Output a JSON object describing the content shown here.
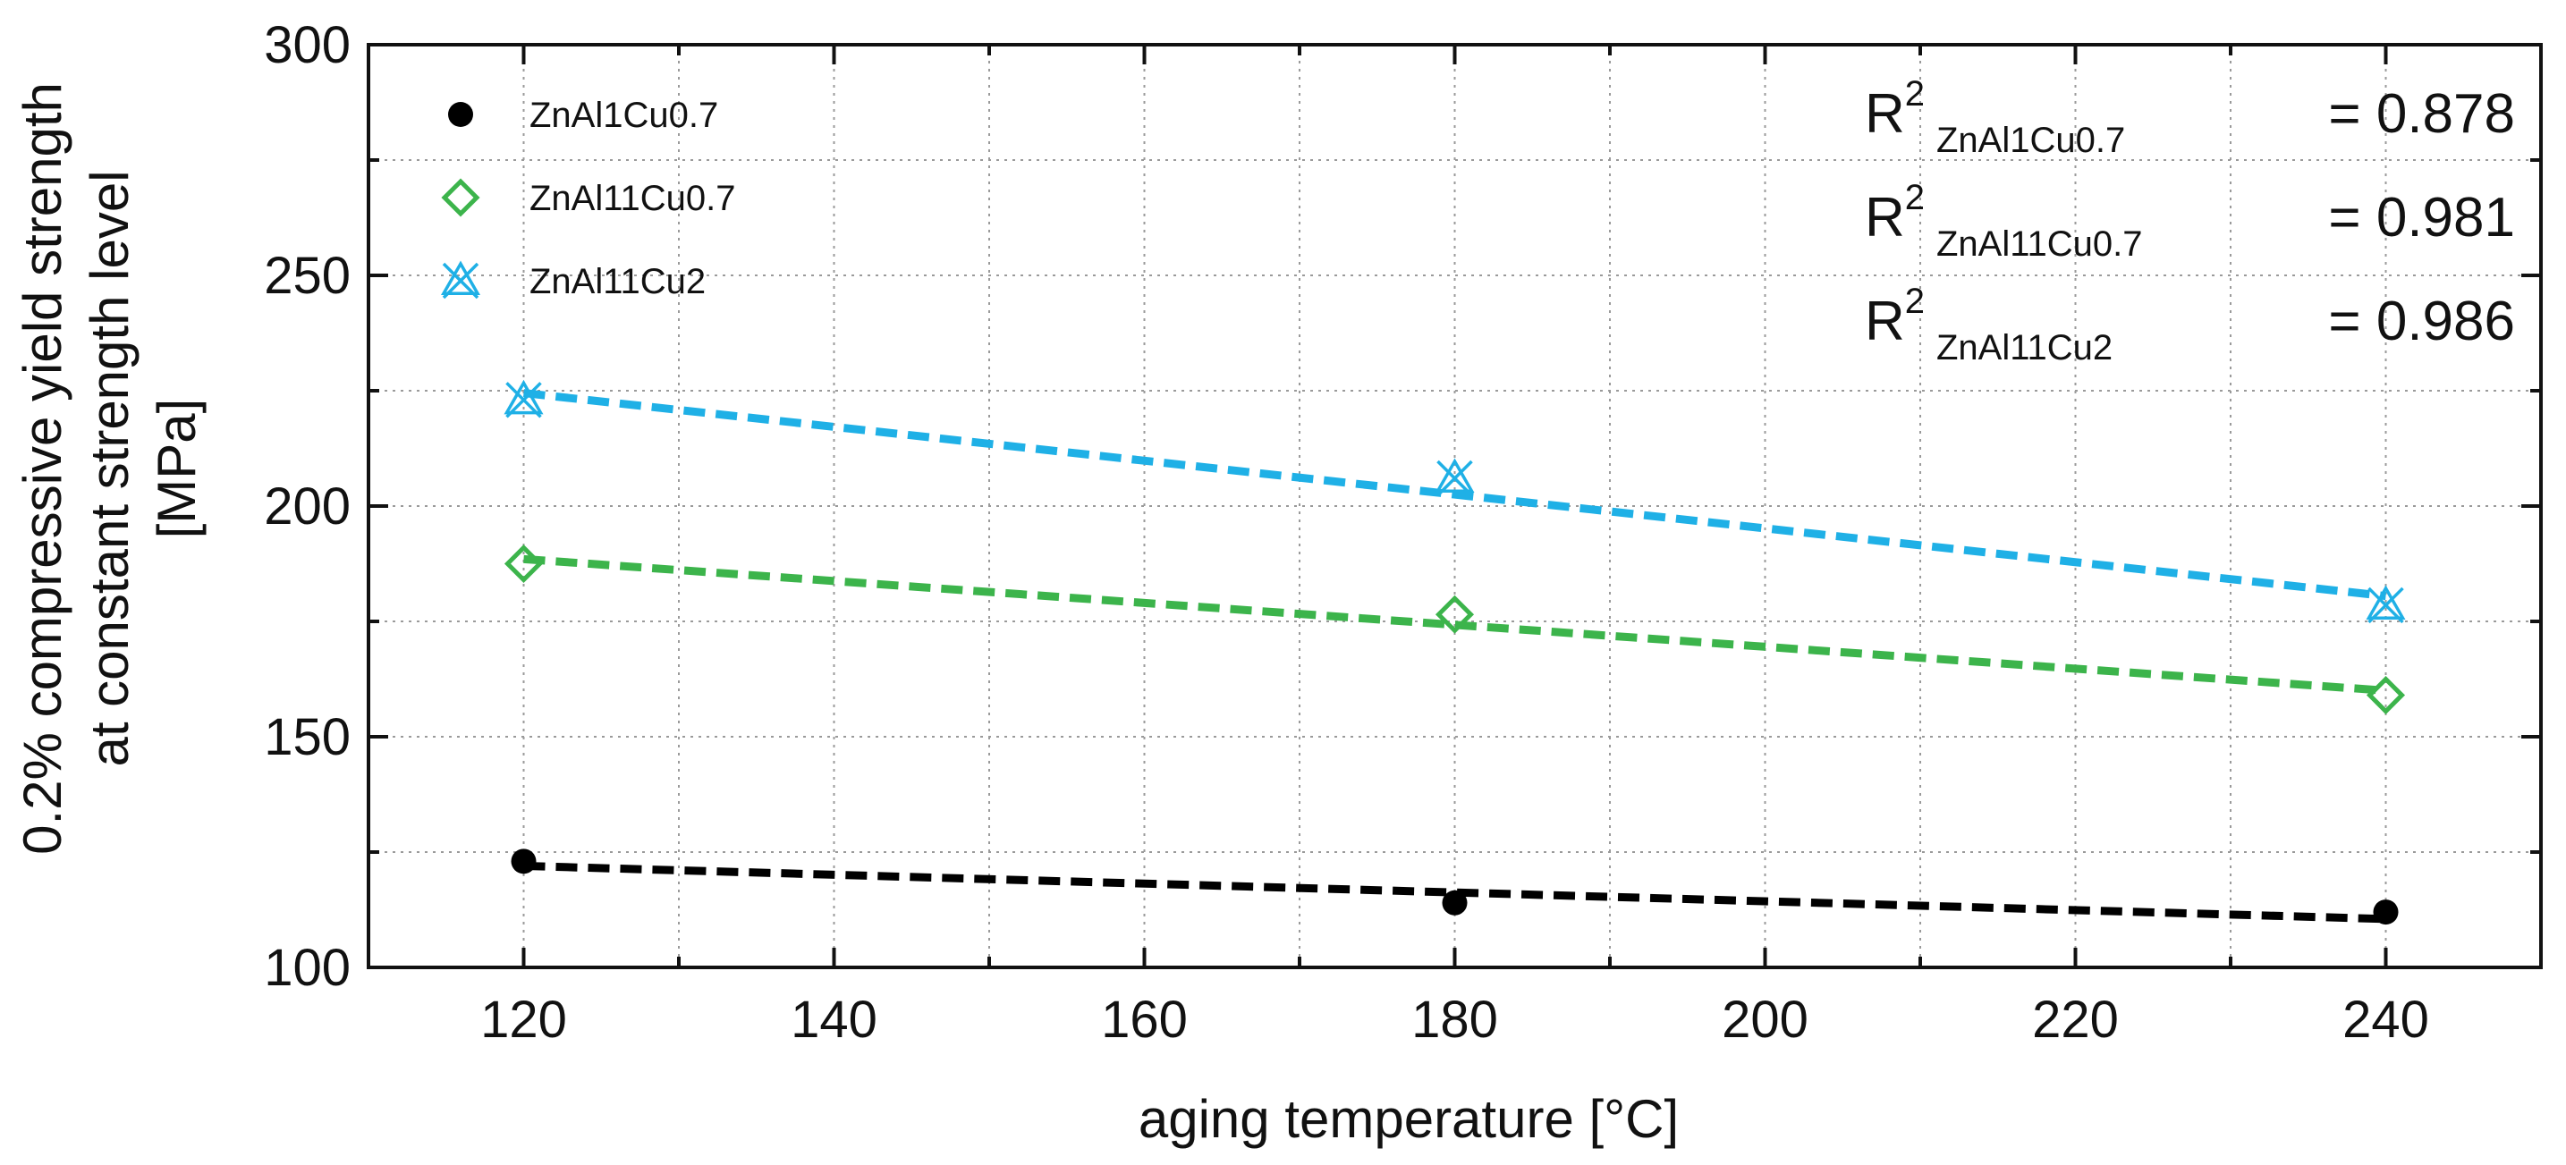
{
  "chart_data": {
    "type": "scatter",
    "xlabel": "aging temperature [°C]",
    "ylabel_lines": [
      "0.2% compressive yield strength",
      "at constant strength level",
      "[MPa]"
    ],
    "xlim": [
      110,
      250
    ],
    "ylim": [
      100,
      300
    ],
    "x_ticks": [
      120,
      140,
      160,
      180,
      200,
      220,
      240
    ],
    "y_ticks": [
      100,
      150,
      200,
      250,
      300
    ],
    "grid": true,
    "legend_position": "top-left",
    "series": [
      {
        "name": "ZnAl1Cu0.7",
        "marker": "filled-circle",
        "color": "#000000",
        "x": [
          120,
          180,
          240
        ],
        "y": [
          123,
          114,
          112
        ],
        "fit": {
          "x": [
            120,
            240
          ],
          "y": [
            122,
            110.5
          ]
        }
      },
      {
        "name": "ZnAl11Cu0.7",
        "marker": "open-diamond",
        "color": "#3cb44b",
        "x": [
          120,
          180,
          240
        ],
        "y": [
          187.5,
          176.5,
          159
        ],
        "fit": {
          "x": [
            120,
            240
          ],
          "y": [
            188.5,
            160
          ]
        }
      },
      {
        "name": "ZnAl11Cu2",
        "marker": "x-triangle",
        "color": "#1fb0e6",
        "x": [
          120,
          180,
          240
        ],
        "y": [
          223,
          206,
          178.5
        ],
        "fit": {
          "x": [
            120,
            240
          ],
          "y": [
            224.5,
            180.5
          ]
        }
      }
    ],
    "annotations": [
      {
        "label": "R",
        "superscript": "2",
        "subscript": "ZnAl1Cu0.7",
        "value": "= 0.878"
      },
      {
        "label": "R",
        "superscript": "2",
        "subscript": "ZnAl11Cu0.7",
        "value": "= 0.981"
      },
      {
        "label": "R",
        "superscript": "2",
        "subscript": "ZnAl11Cu2",
        "value": "= 0.986"
      }
    ]
  }
}
